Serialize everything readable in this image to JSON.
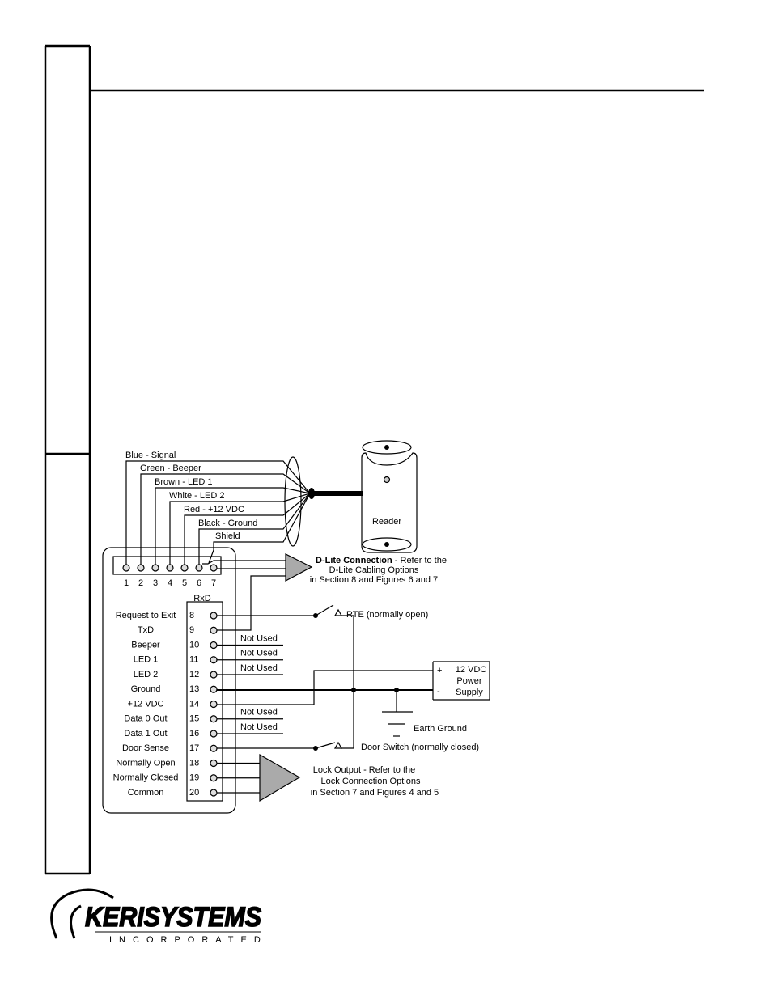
{
  "diagram": {
    "wires": [
      "Blue - Signal",
      "Green - Beeper",
      "Brown - LED 1",
      "White - LED 2",
      "Red - +12 VDC",
      "Black - Ground",
      "Shield"
    ],
    "top_terminals": [
      "1",
      "2",
      "3",
      "4",
      "5",
      "6",
      "7"
    ],
    "rxd_label": "RxD",
    "terminals": [
      {
        "number": "8",
        "label": "Request to Exit"
      },
      {
        "number": "9",
        "label": "TxD"
      },
      {
        "number": "10",
        "label": "Beeper",
        "note": "Not Used"
      },
      {
        "number": "11",
        "label": "LED 1",
        "note": "Not Used"
      },
      {
        "number": "12",
        "label": "LED 2",
        "note": "Not Used"
      },
      {
        "number": "13",
        "label": "Ground"
      },
      {
        "number": "14",
        "label": "+12 VDC"
      },
      {
        "number": "15",
        "label": "Data 0 Out",
        "note": "Not Used"
      },
      {
        "number": "16",
        "label": "Data 1 Out",
        "note": "Not Used"
      },
      {
        "number": "17",
        "label": "Door Sense"
      },
      {
        "number": "18",
        "label": "Normally Open"
      },
      {
        "number": "19",
        "label": "Normally Closed"
      },
      {
        "number": "20",
        "label": "Common"
      }
    ],
    "reader": "Reader",
    "dlite": {
      "bold": "D-Lite Connection",
      "lines": [
        " - Refer to the",
        "D-Lite Cabling Options",
        "in Section 8 and Figures 6 and 7"
      ]
    },
    "rte": "RTE (normally open)",
    "power": {
      "plus": "+",
      "minus": "-",
      "lines": [
        "12 VDC",
        "Power",
        "Supply"
      ]
    },
    "earth": "Earth Ground",
    "door_switch": "Door Switch (normally closed)",
    "lock": {
      "lines": [
        "Lock Output - Refer to the",
        "Lock Connection Options",
        "in Section 7 and Figures 4 and 5"
      ]
    }
  },
  "logo": {
    "name": "KERISYSTEMS",
    "sub": "INCORPORATED"
  }
}
